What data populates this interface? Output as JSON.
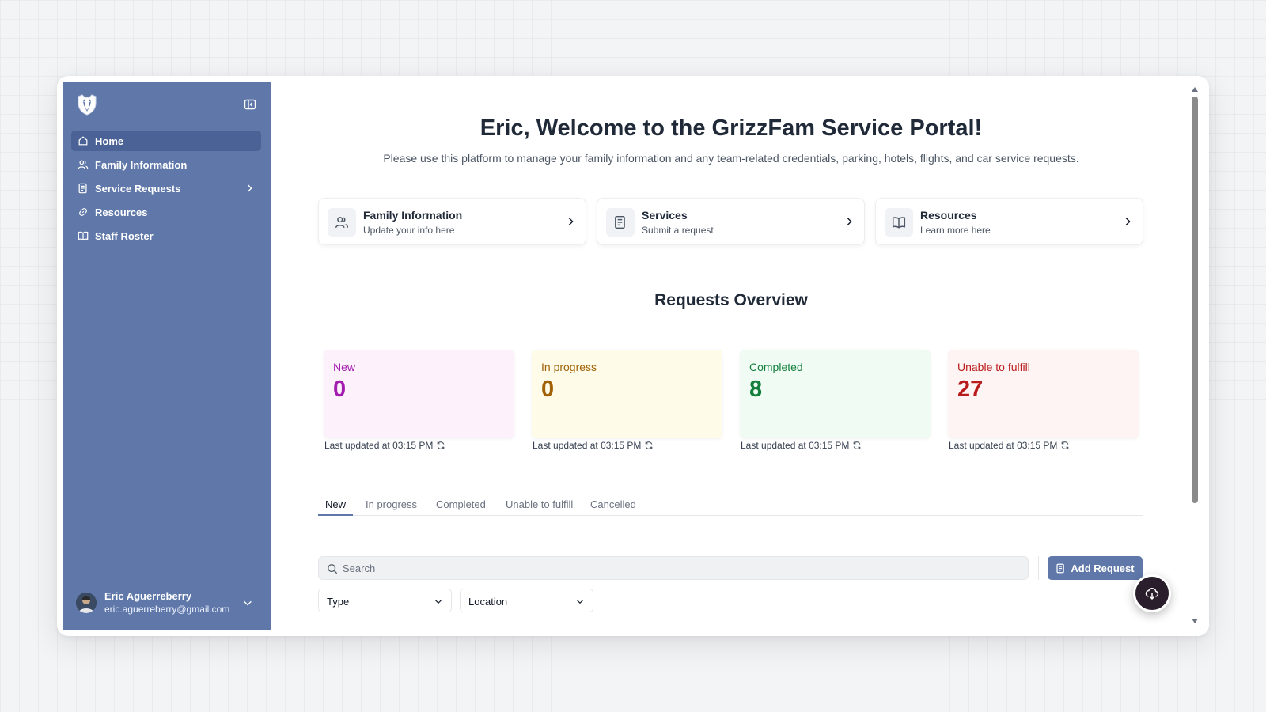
{
  "sidebar": {
    "items": [
      {
        "label": "Home",
        "icon": "home-icon",
        "active": true
      },
      {
        "label": "Family Information",
        "icon": "users-icon"
      },
      {
        "label": "Service Requests",
        "icon": "clipboard-icon",
        "has_submenu": true
      },
      {
        "label": "Resources",
        "icon": "link-icon"
      },
      {
        "label": "Staff Roster",
        "icon": "book-icon"
      }
    ],
    "user": {
      "name": "Eric Aguerreberry",
      "email": "eric.aguerreberry@gmail.com"
    }
  },
  "welcome": {
    "title": "Eric, Welcome to the GrizzFam Service Portal!",
    "subtitle": "Please use this platform to manage your family information and any team-related credentials, parking, hotels, flights, and car service requests."
  },
  "quick_links": [
    {
      "title": "Family Information",
      "subtitle": "Update your info here",
      "icon": "users-icon"
    },
    {
      "title": "Services",
      "subtitle": "Submit a request",
      "icon": "clipboard-icon"
    },
    {
      "title": "Resources",
      "subtitle": "Learn more here",
      "icon": "book-icon"
    }
  ],
  "overview": {
    "title": "Requests Overview",
    "stats": [
      {
        "label": "New",
        "value": "0",
        "updated": "Last updated at 03:15 PM",
        "color": "#a21caf",
        "bg": "#fdf2fb"
      },
      {
        "label": "In progress",
        "value": "0",
        "updated": "Last updated at 03:15 PM",
        "color": "#a16207",
        "bg": "#fefbe8"
      },
      {
        "label": "Completed",
        "value": "8",
        "updated": "Last updated at 03:15 PM",
        "color": "#15803d",
        "bg": "#f0fbf4"
      },
      {
        "label": "Unable to fulfill",
        "value": "27",
        "updated": "Last updated at 03:15 PM",
        "color": "#b91c1c",
        "bg": "#fef4f4"
      }
    ]
  },
  "tabs": [
    {
      "label": "New",
      "active": true
    },
    {
      "label": "In progress"
    },
    {
      "label": "Completed"
    },
    {
      "label": "Unable to fulfill"
    },
    {
      "label": "Cancelled"
    }
  ],
  "search": {
    "placeholder": "Search",
    "value": ""
  },
  "add_request_label": "Add Request",
  "filters": {
    "type_label": "Type",
    "location_label": "Location"
  },
  "colors": {
    "sidebar": "#5f78a9",
    "accent": "#5f78a9"
  }
}
